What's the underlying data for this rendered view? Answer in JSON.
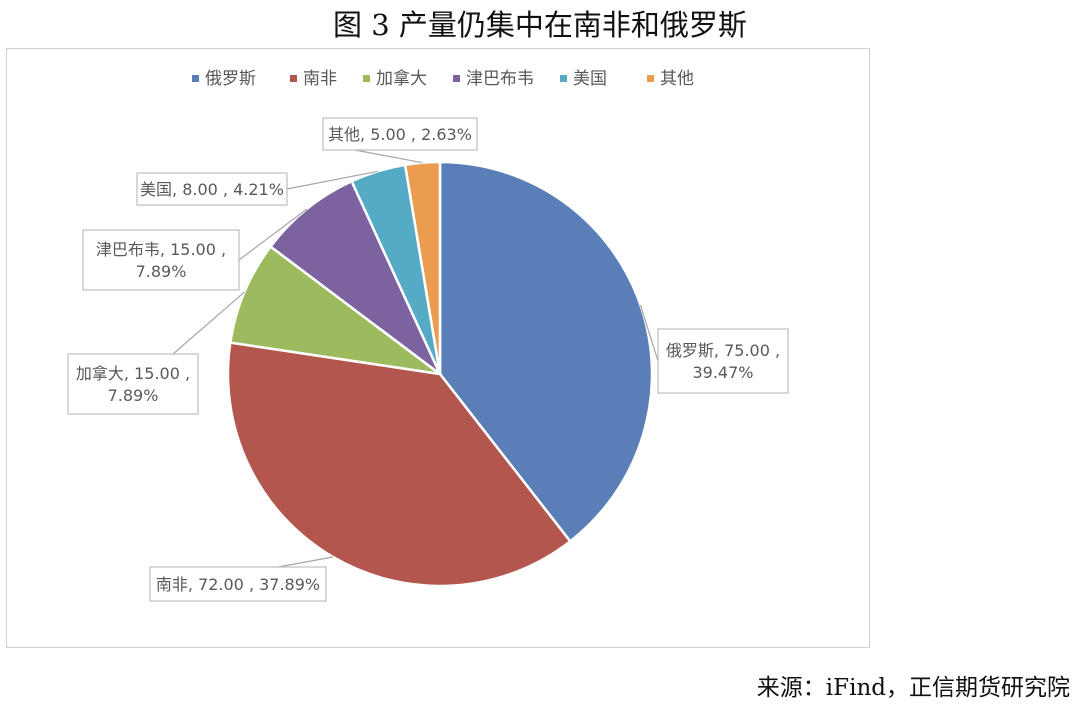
{
  "figure": {
    "title": "图 3 产量仍集中在南非和俄罗斯",
    "source": "来源：iFind，正信期货研究院"
  },
  "chart_data": {
    "type": "pie",
    "title": "",
    "legend_position": "top",
    "slices": [
      {
        "name": "俄罗斯",
        "value": 75.0,
        "percent": 39.47,
        "color": "#5a7fb8",
        "label_lines": [
          "俄罗斯, 75.00 ,",
          "39.47%"
        ]
      },
      {
        "name": "南非",
        "value": 72.0,
        "percent": 37.89,
        "color": "#b3564e",
        "label_lines": [
          "南非, 72.00 , 37.89%"
        ]
      },
      {
        "name": "加拿大",
        "value": 15.0,
        "percent": 7.89,
        "color": "#9dba5f",
        "label_lines": [
          "加拿大, 15.00 ,",
          "7.89%"
        ]
      },
      {
        "name": "津巴布韦",
        "value": 15.0,
        "percent": 7.89,
        "color": "#7c63a0",
        "label_lines": [
          "津巴布韦, 15.00 ,",
          "7.89%"
        ]
      },
      {
        "name": "美国",
        "value": 8.0,
        "percent": 4.21,
        "color": "#55aac5",
        "label_lines": [
          "美国, 8.00 , 4.21%"
        ]
      },
      {
        "name": "其他",
        "value": 5.0,
        "percent": 2.63,
        "color": "#eb9c4e",
        "label_lines": [
          "其他, 5.00 , 2.63%"
        ]
      }
    ]
  }
}
